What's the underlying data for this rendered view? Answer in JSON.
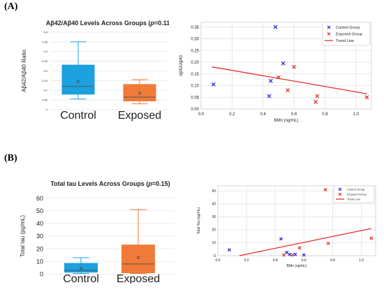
{
  "panels": {
    "a": "(A)",
    "b": "(B)"
  },
  "chart_data": [
    {
      "type": "box",
      "title_pre": "Aβ42/Aβ40 Levels Across Groups (",
      "title_p": "p",
      "title_post": "=0.11)",
      "ylabel": "Aβ42/Aβ40 Ratio",
      "ylim": [
        0,
        0.4
      ],
      "yticks": [
        "0",
        "0.05",
        "0.1",
        "0.15",
        "0.2",
        "0.25",
        "0.3",
        "0.35",
        "0.4"
      ],
      "grid": true,
      "groups": [
        {
          "name": "Control",
          "color": "#1ba0e0",
          "whisker_low": 0.055,
          "q1": 0.08,
          "median": 0.12,
          "q3": 0.23,
          "whisker_high": 0.35,
          "mean": 0.145
        },
        {
          "name": "Exposed",
          "color": "#f07a38",
          "whisker_low": 0.03,
          "q1": 0.045,
          "median": 0.065,
          "q3": 0.13,
          "whisker_high": 0.155,
          "mean": 0.085
        }
      ]
    },
    {
      "type": "scatter",
      "xlabel": "BMn (ng/mL)",
      "ylabel": "Aβ42/Aβ40",
      "xlim": [
        0.0,
        1.1
      ],
      "ylim": [
        0.0,
        0.37
      ],
      "xticks": [
        "0.0",
        "0.2",
        "0.4",
        "0.6",
        "0.8",
        "1.0"
      ],
      "yticks": [
        "0.00",
        "0.05",
        "0.10",
        "0.15",
        "0.20",
        "0.25",
        "0.30",
        "0.35"
      ],
      "grid": true,
      "legend": {
        "position": "top-right",
        "items": [
          "Control Group",
          "Exposed Group",
          "Trend Line"
        ]
      },
      "series": [
        {
          "name": "Control Group",
          "color": "#2a2ad0",
          "x": [
            0.08,
            0.44,
            0.45,
            0.48,
            0.53
          ],
          "y": [
            0.105,
            0.055,
            0.12,
            0.35,
            0.195
          ]
        },
        {
          "name": "Exposed Group",
          "color": "#e03030",
          "x": [
            0.5,
            0.56,
            0.6,
            0.74,
            0.75,
            1.07
          ],
          "y": [
            0.135,
            0.08,
            0.18,
            0.03,
            0.055,
            0.05
          ]
        }
      ],
      "trend": {
        "x": [
          0.07,
          1.07
        ],
        "y": [
          0.18,
          0.065
        ],
        "color": "#e83030"
      }
    },
    {
      "type": "box",
      "title_pre": "Total tau Levels Across Groups (",
      "title_p": "p",
      "title_post": "=0.15)",
      "ylabel": "Total tau (pg/mL)",
      "ylim": [
        -2,
        62
      ],
      "yticks": [
        "0",
        "10",
        "20",
        "30",
        "40",
        "50",
        "60"
      ],
      "grid": true,
      "groups": [
        {
          "name": "Control",
          "color": "#1ba0e0",
          "whisker_low": 0.5,
          "q1": 1.5,
          "median": 3,
          "q3": 8.5,
          "whisker_high": 13,
          "mean": 4.5
        },
        {
          "name": "Exposed",
          "color": "#f07a38",
          "whisker_low": 0.5,
          "q1": 1,
          "median": 8,
          "q3": 23,
          "whisker_high": 51,
          "mean": 13
        }
      ]
    },
    {
      "type": "scatter",
      "xlabel": "BMn (ng/mL)",
      "ylabel": "Total Tau (pg/mL)",
      "xlim": [
        0.0,
        1.1
      ],
      "ylim": [
        0,
        54
      ],
      "xticks": [
        "0.0",
        "0.2",
        "0.4",
        "0.6",
        "0.8",
        "1.0"
      ],
      "yticks": [
        "0",
        "10",
        "20",
        "30",
        "40",
        "50"
      ],
      "grid": true,
      "legend": {
        "position": "top-left",
        "items": [
          "Control Group",
          "Exposed Group",
          "Trend Line"
        ]
      },
      "series": [
        {
          "name": "Control Group",
          "color": "#2a2ad0",
          "x": [
            0.08,
            0.44,
            0.48,
            0.5,
            0.54,
            0.6
          ],
          "y": [
            4.5,
            13,
            2.5,
            1,
            1,
            0.5
          ]
        },
        {
          "name": "Exposed Group",
          "color": "#e03030",
          "x": [
            0.46,
            0.52,
            0.57,
            0.75,
            0.77,
            1.07
          ],
          "y": [
            0.5,
            0.5,
            6,
            51,
            9.5,
            13.5
          ]
        }
      ],
      "trend": {
        "x": [
          0.15,
          1.07
        ],
        "y": [
          0,
          21
        ],
        "color": "#e83030"
      }
    }
  ]
}
